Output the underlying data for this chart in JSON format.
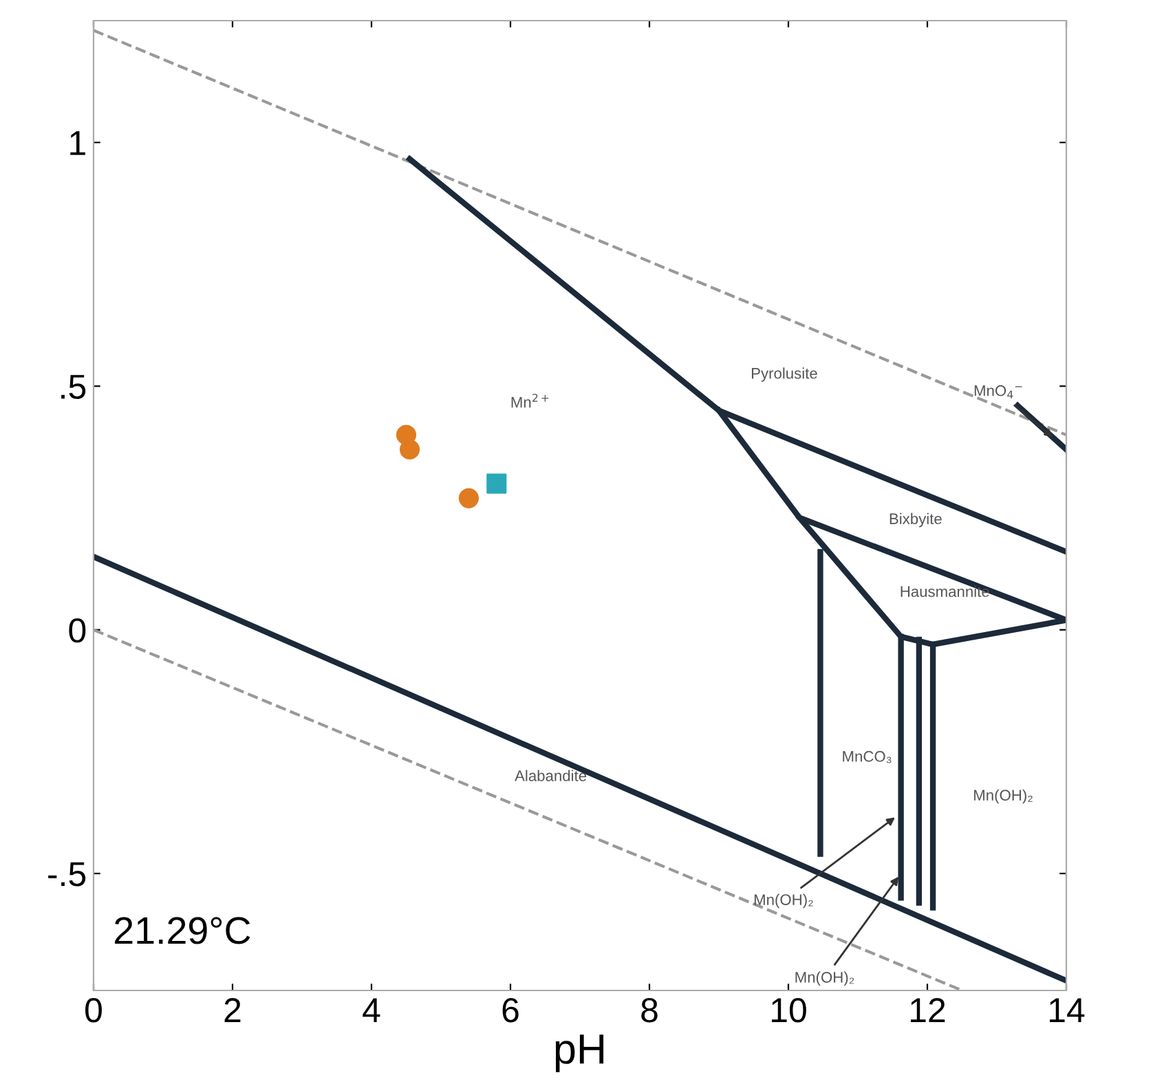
{
  "chart_data": {
    "type": "line",
    "xlabel": "pH",
    "xlim": [
      0,
      14
    ],
    "ylim": [
      -0.74,
      1.25
    ],
    "xticks": [
      0,
      2,
      4,
      6,
      8,
      10,
      12,
      14
    ],
    "yticks": [
      {
        "value": -0.5,
        "label": "-.5"
      },
      0,
      {
        "value": 0.5,
        "label": ".5"
      },
      1
    ],
    "grid": false,
    "legend": false,
    "marker": "none",
    "series": [
      {
        "color": "#999999",
        "line_style": "dashed",
        "x": [
          0,
          14
        ],
        "values": [
          1.23,
          0.4
        ]
      },
      {
        "color": "#999999",
        "line_style": "dashed",
        "x": [
          0,
          12.5
        ],
        "values": [
          0,
          -0.74
        ]
      },
      {
        "color": "#1c2a3a",
        "x": [
          4.55,
          9.0,
          14
        ],
        "values": [
          0.966,
          0.45,
          0.16
        ]
      },
      {
        "color": "#1c2a3a",
        "x": [
          9.0,
          10.16,
          14
        ],
        "values": [
          0.45,
          0.23,
          0.02
        ]
      },
      {
        "color": "#1c2a3a",
        "x": [
          10.16,
          11.62,
          12.08,
          14
        ],
        "values": [
          0.23,
          -0.014,
          -0.03,
          0.02
        ]
      },
      {
        "color": "#1c2a3a",
        "x": [
          10.46,
          10.46
        ],
        "values": [
          0.16,
          -0.46
        ]
      },
      {
        "color": "#1c2a3a",
        "x": [
          11.62,
          11.62
        ],
        "values": [
          -0.014,
          -0.55
        ]
      },
      {
        "color": "#1c2a3a",
        "x": [
          11.88,
          11.88
        ],
        "values": [
          -0.02,
          -0.56
        ]
      },
      {
        "color": "#1c2a3a",
        "x": [
          12.08,
          12.08
        ],
        "values": [
          -0.03,
          -0.57
        ]
      },
      {
        "color": "#1c2a3a",
        "x": [
          0,
          14
        ],
        "values": [
          0.15,
          -0.72
        ]
      },
      {
        "color": "#1c2a3a",
        "x": [
          13.3,
          14
        ],
        "values": [
          0.46,
          0.37
        ]
      },
      {
        "type": "scatter",
        "marker": "circle",
        "color": "#e07b20",
        "x": [
          4.5,
          4.55,
          5.4
        ],
        "values": [
          0.4,
          0.37,
          0.27
        ]
      },
      {
        "type": "scatter",
        "marker": "square",
        "color": "#2aa8b8",
        "x": [
          5.8
        ],
        "values": [
          0.3
        ]
      }
    ],
    "annotations": [
      "21.29°C",
      "Mn$^{2+}$",
      "Pyrolusite",
      "Bixbyite",
      "Hausmannite",
      "Alabandite",
      "MnCO₃",
      "Mn(OH)₂",
      {
        "text": "MnO$_{4}$$^{−}$",
        "x": 13.85,
        "y": 0.39
      },
      {
        "text": "Mn(OH)₂",
        "x": 11.58,
        "y": -0.38
      },
      {
        "text": "Mn(OH)₂",
        "x": 11.62,
        "y": -0.5
      }
    ]
  }
}
